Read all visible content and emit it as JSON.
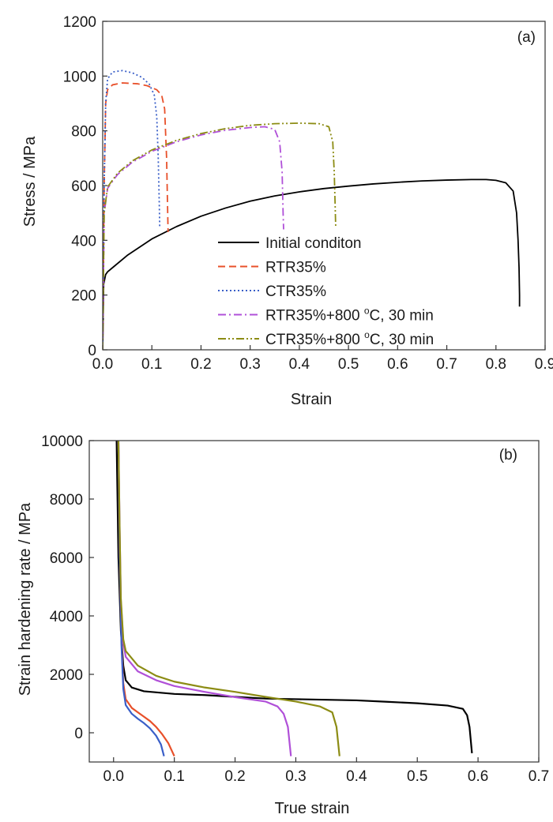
{
  "chart_data": [
    {
      "type": "line",
      "panel_label": "(a)",
      "xlabel": "Strain",
      "ylabel": "Stress / MPa",
      "xlim": [
        0,
        0.9
      ],
      "ylim": [
        0,
        1200
      ],
      "xticks": [
        "0.0",
        "0.1",
        "0.2",
        "0.3",
        "0.4",
        "0.5",
        "0.6",
        "0.7",
        "0.8",
        "0.9"
      ],
      "yticks": [
        "0",
        "200",
        "400",
        "600",
        "800",
        "1000",
        "1200"
      ],
      "grid": false,
      "legend_position": "bottom-right",
      "series": [
        {
          "name": "Initial conditon",
          "color": "#000000",
          "dash": "solid",
          "points": [
            [
              0.0,
              0
            ],
            [
              0.002,
              240
            ],
            [
              0.006,
              275
            ],
            [
              0.01,
              285
            ],
            [
              0.02,
              300
            ],
            [
              0.05,
              345
            ],
            [
              0.1,
              405
            ],
            [
              0.15,
              450
            ],
            [
              0.2,
              488
            ],
            [
              0.25,
              518
            ],
            [
              0.3,
              543
            ],
            [
              0.35,
              562
            ],
            [
              0.4,
              577
            ],
            [
              0.45,
              589
            ],
            [
              0.5,
              598
            ],
            [
              0.55,
              606
            ],
            [
              0.6,
              612
            ],
            [
              0.65,
              617
            ],
            [
              0.7,
              620
            ],
            [
              0.75,
              622
            ],
            [
              0.78,
              622
            ],
            [
              0.8,
              619
            ],
            [
              0.82,
              610
            ],
            [
              0.835,
              580
            ],
            [
              0.842,
              500
            ],
            [
              0.845,
              400
            ],
            [
              0.847,
              300
            ],
            [
              0.848,
              200
            ],
            [
              0.848,
              158
            ]
          ]
        },
        {
          "name": "RTR35%",
          "color": "#e8502a",
          "dash": "dashed",
          "points": [
            [
              0.0,
              0
            ],
            [
              0.003,
              600
            ],
            [
              0.006,
              900
            ],
            [
              0.01,
              950
            ],
            [
              0.02,
              968
            ],
            [
              0.04,
              975
            ],
            [
              0.07,
              972
            ],
            [
              0.09,
              965
            ],
            [
              0.11,
              950
            ],
            [
              0.12,
              930
            ],
            [
              0.126,
              880
            ],
            [
              0.13,
              700
            ],
            [
              0.132,
              520
            ],
            [
              0.133,
              430
            ]
          ]
        },
        {
          "name": "CTR35%",
          "color": "#3a5fc8",
          "dash": "dotted",
          "points": [
            [
              0.0,
              0
            ],
            [
              0.003,
              600
            ],
            [
              0.006,
              900
            ],
            [
              0.01,
              990
            ],
            [
              0.02,
              1015
            ],
            [
              0.04,
              1020
            ],
            [
              0.06,
              1012
            ],
            [
              0.08,
              995
            ],
            [
              0.095,
              970
            ],
            [
              0.105,
              930
            ],
            [
              0.11,
              850
            ],
            [
              0.113,
              700
            ],
            [
              0.115,
              540
            ],
            [
              0.116,
              450
            ]
          ]
        },
        {
          "name": "RTR35%+800 °C, 30 min",
          "color": "#b050d8",
          "dash": "dashdot",
          "points": [
            [
              0.0,
              0
            ],
            [
              0.003,
              500
            ],
            [
              0.01,
              590
            ],
            [
              0.03,
              640
            ],
            [
              0.06,
              685
            ],
            [
              0.1,
              725
            ],
            [
              0.15,
              760
            ],
            [
              0.2,
              785
            ],
            [
              0.25,
              802
            ],
            [
              0.3,
              812
            ],
            [
              0.33,
              815
            ],
            [
              0.35,
              805
            ],
            [
              0.36,
              760
            ],
            [
              0.365,
              650
            ],
            [
              0.367,
              500
            ],
            [
              0.368,
              440
            ]
          ]
        },
        {
          "name": "CTR35%+800 °C, 30 min",
          "color": "#8c8c14",
          "dash": "dashdotdot",
          "points": [
            [
              0.0,
              0
            ],
            [
              0.003,
              500
            ],
            [
              0.01,
              595
            ],
            [
              0.03,
              645
            ],
            [
              0.06,
              690
            ],
            [
              0.1,
              730
            ],
            [
              0.15,
              765
            ],
            [
              0.2,
              790
            ],
            [
              0.25,
              808
            ],
            [
              0.3,
              820
            ],
            [
              0.35,
              826
            ],
            [
              0.4,
              828
            ],
            [
              0.44,
              826
            ],
            [
              0.46,
              815
            ],
            [
              0.468,
              760
            ],
            [
              0.471,
              650
            ],
            [
              0.473,
              520
            ],
            [
              0.474,
              450
            ]
          ]
        }
      ]
    },
    {
      "type": "line",
      "panel_label": "(b)",
      "xlabel": "True strain",
      "ylabel": "Strain hardening rate / MPa",
      "xlim": [
        -0.04,
        0.7
      ],
      "ylim": [
        -1000,
        10000
      ],
      "xticks": [
        "0.0",
        "0.1",
        "0.2",
        "0.3",
        "0.4",
        "0.5",
        "0.6",
        "0.7"
      ],
      "yticks": [
        "0",
        "2000",
        "4000",
        "6000",
        "8000",
        "10000"
      ],
      "grid": false,
      "series": [
        {
          "name": "Initial conditon",
          "color": "#000000",
          "points": [
            [
              0.005,
              10000
            ],
            [
              0.008,
              6000
            ],
            [
              0.012,
              3500
            ],
            [
              0.016,
              2300
            ],
            [
              0.02,
              1800
            ],
            [
              0.03,
              1550
            ],
            [
              0.05,
              1420
            ],
            [
              0.1,
              1330
            ],
            [
              0.15,
              1290
            ],
            [
              0.2,
              1230
            ],
            [
              0.25,
              1170
            ],
            [
              0.3,
              1150
            ],
            [
              0.35,
              1130
            ],
            [
              0.4,
              1110
            ],
            [
              0.45,
              1060
            ],
            [
              0.5,
              1010
            ],
            [
              0.55,
              930
            ],
            [
              0.575,
              820
            ],
            [
              0.582,
              600
            ],
            [
              0.586,
              200
            ],
            [
              0.59,
              -700
            ]
          ]
        },
        {
          "name": "RTR35%",
          "color": "#e8502a",
          "points": [
            [
              0.008,
              10000
            ],
            [
              0.01,
              6000
            ],
            [
              0.013,
              3200
            ],
            [
              0.016,
              1700
            ],
            [
              0.02,
              1150
            ],
            [
              0.03,
              850
            ],
            [
              0.04,
              700
            ],
            [
              0.05,
              550
            ],
            [
              0.06,
              400
            ],
            [
              0.07,
              200
            ],
            [
              0.08,
              -50
            ],
            [
              0.09,
              -350
            ],
            [
              0.1,
              -800
            ]
          ]
        },
        {
          "name": "CTR35%",
          "color": "#3a5fc8",
          "points": [
            [
              0.008,
              10000
            ],
            [
              0.01,
              6000
            ],
            [
              0.013,
              3000
            ],
            [
              0.016,
              1500
            ],
            [
              0.02,
              950
            ],
            [
              0.03,
              650
            ],
            [
              0.04,
              480
            ],
            [
              0.05,
              330
            ],
            [
              0.06,
              150
            ],
            [
              0.07,
              -100
            ],
            [
              0.078,
              -400
            ],
            [
              0.083,
              -800
            ]
          ]
        },
        {
          "name": "RTR35%+800 °C, 30 min",
          "color": "#b050d8",
          "points": [
            [
              0.008,
              10000
            ],
            [
              0.01,
              7000
            ],
            [
              0.012,
              4500
            ],
            [
              0.016,
              3100
            ],
            [
              0.02,
              2600
            ],
            [
              0.04,
              2100
            ],
            [
              0.07,
              1800
            ],
            [
              0.1,
              1600
            ],
            [
              0.15,
              1400
            ],
            [
              0.2,
              1220
            ],
            [
              0.25,
              1070
            ],
            [
              0.27,
              900
            ],
            [
              0.28,
              650
            ],
            [
              0.287,
              200
            ],
            [
              0.292,
              -800
            ]
          ]
        },
        {
          "name": "CTR35%+800 °C, 30 min",
          "color": "#8c8c14",
          "points": [
            [
              0.008,
              10000
            ],
            [
              0.01,
              7000
            ],
            [
              0.012,
              4600
            ],
            [
              0.016,
              3200
            ],
            [
              0.02,
              2800
            ],
            [
              0.04,
              2300
            ],
            [
              0.07,
              1950
            ],
            [
              0.1,
              1750
            ],
            [
              0.15,
              1550
            ],
            [
              0.2,
              1400
            ],
            [
              0.25,
              1230
            ],
            [
              0.3,
              1070
            ],
            [
              0.34,
              900
            ],
            [
              0.36,
              700
            ],
            [
              0.367,
              200
            ],
            [
              0.372,
              -800
            ]
          ]
        }
      ]
    }
  ]
}
